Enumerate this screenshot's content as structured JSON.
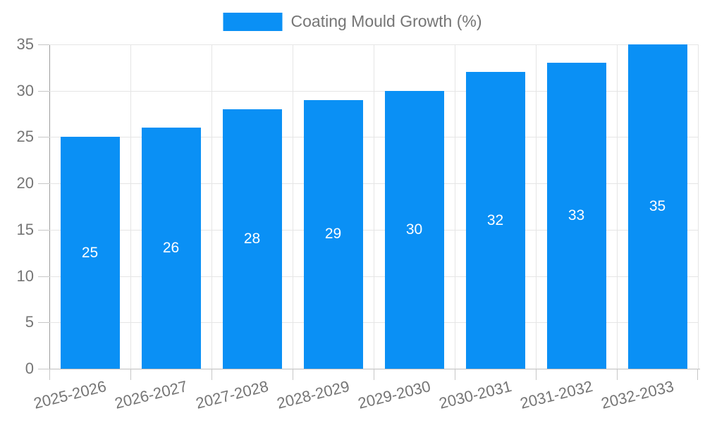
{
  "legend": {
    "label": "Coating Mould Growth (%)"
  },
  "colors": {
    "bar": "#0a90f5",
    "barlabel": "#ffffff",
    "text": "#757575",
    "grid": "#e5e5e5",
    "axis": "#9e9e9e",
    "baseline": "#bdbdbd",
    "tick": "#c7c7c7",
    "background": "#ffffff"
  },
  "chart_data": {
    "type": "bar",
    "title": "",
    "xlabel": "",
    "ylabel": "",
    "categories": [
      "2025-2026",
      "2026-2027",
      "2027-2028",
      "2028-2029",
      "2029-2030",
      "2030-2031",
      "2031-2032",
      "2032-2033"
    ],
    "series": [
      {
        "name": "Coating Mould Growth (%)",
        "values": [
          25,
          26,
          28,
          29,
          30,
          32,
          33,
          35
        ]
      }
    ],
    "bar_value_labels": [
      25,
      26,
      28,
      29,
      30,
      32,
      33,
      35
    ],
    "ylim": [
      0,
      35
    ],
    "yticks": [
      0,
      5,
      10,
      15,
      20,
      25,
      30,
      35
    ],
    "grid": true,
    "legend_position": "top-center",
    "x_label_rotation_deg": -14
  }
}
